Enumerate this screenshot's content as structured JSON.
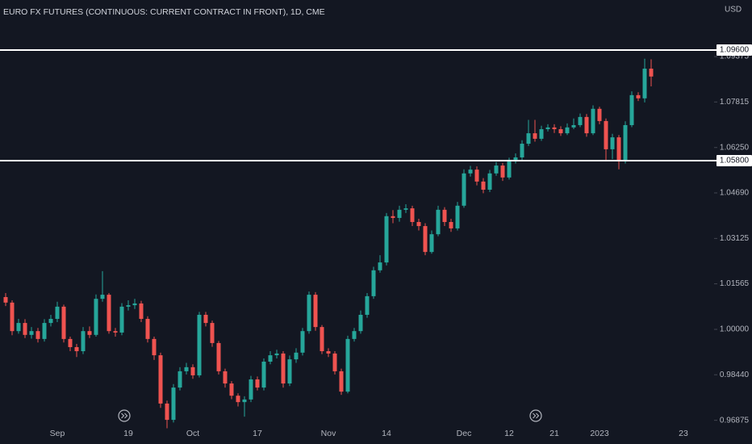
{
  "chart_data": {
    "type": "candlestick",
    "title": "EURO FX FUTURES (CONTINUOUS: CURRENT CONTRACT IN FRONT), 1D, CME",
    "currency": "USD",
    "up_color": "#26a69a",
    "down_color": "#ef5350",
    "ylim": [
      0.9606,
      1.1132
    ],
    "yticks": [
      0.96875,
      {
        "value": 0.9844,
        "label": "0.98440"
      },
      {
        "value": 1,
        "label": "1.00000"
      },
      1.01565,
      1.03125,
      {
        "value": 1.0469,
        "label": "1.04690"
      },
      {
        "value": 1.0625,
        "label": "1.06250"
      },
      1.07815,
      1.09375
    ],
    "levels": [
      {
        "value": 1.096,
        "label": "1.09600"
      },
      {
        "value": 1.058,
        "label": "1.05800"
      }
    ],
    "categories": [
      null,
      null,
      null,
      null,
      null,
      null,
      null,
      null,
      "Sep",
      null,
      null,
      null,
      null,
      null,
      null,
      null,
      null,
      null,
      null,
      "19",
      null,
      null,
      null,
      null,
      null,
      null,
      null,
      null,
      null,
      "Oct",
      null,
      null,
      null,
      null,
      null,
      null,
      null,
      null,
      null,
      "17",
      null,
      null,
      null,
      null,
      null,
      null,
      null,
      null,
      null,
      null,
      "Nov",
      null,
      null,
      null,
      null,
      null,
      null,
      null,
      null,
      "14",
      null,
      null,
      null,
      null,
      null,
      null,
      null,
      null,
      null,
      null,
      null,
      "Dec",
      null,
      null,
      null,
      null,
      null,
      null,
      "12",
      null,
      null,
      null,
      null,
      null,
      null,
      "21",
      null,
      null,
      null,
      null,
      null,
      null,
      "2023",
      null,
      null,
      null,
      null,
      null,
      null,
      null,
      null,
      null,
      null,
      null,
      null,
      "23"
    ],
    "open": [
      1.0111,
      1.0092,
      0.9994,
      1.0022,
      0.9981,
      0.9994,
      0.9967,
      1.0022,
      1.0036,
      1.0078,
      0.9967,
      0.9939,
      0.9925,
      0.9994,
      0.9981,
      1.0105,
      1.0119,
      0.9994,
      0.9989,
      1.0078,
      1.0083,
      1.0089,
      1.0036,
      0.9967,
      0.9911,
      0.9745,
      0.9689,
      0.98,
      0.9856,
      0.987,
      0.9842,
      1.005,
      1.0022,
      0.9953,
      0.9856,
      0.9814,
      0.9772,
      0.975,
      0.9759,
      0.9828,
      0.98,
      0.9889,
      0.9911,
      0.9917,
      0.9814,
      0.9897,
      0.992,
      0.9994,
      1.0119,
      1.0008,
      0.9925,
      0.9917,
      0.9856,
      0.9786,
      0.9967,
      0.9994,
      1.005,
      1.0114,
      1.0203,
      1.023,
      1.0389,
      1.0383,
      1.0411,
      1.0416,
      1.0369,
      1.0355,
      1.0266,
      1.0327,
      1.0411,
      1.0369,
      1.0347,
      1.0425,
      1.0536,
      1.0549,
      1.0508,
      1.048,
      1.0536,
      1.0563,
      1.0522,
      1.0577,
      1.0591,
      1.0638,
      1.0674,
      1.0655,
      1.0688,
      1.0694,
      1.0688,
      1.0674,
      1.0694,
      1.0702,
      1.073,
      1.0674,
      1.0758,
      1.0716,
      1.0619,
      1.066,
      1.0577,
      1.0702,
      1.0805,
      1.0794,
      1.0896,
      null,
      null,
      null,
      null,
      null
    ],
    "high": [
      1.0125,
      1.01,
      1.0036,
      1.0035,
      1.0008,
      1.0005,
      1.0035,
      1.005,
      1.0095,
      1.0085,
      0.9975,
      0.995,
      1.0008,
      1.001,
      1.012,
      1.02,
      1.0125,
      1.0005,
      1.009,
      1.01,
      1.0105,
      1.0098,
      1.0045,
      0.9975,
      0.992,
      0.9755,
      0.9812,
      0.987,
      0.9885,
      0.988,
      1.006,
      1.006,
      1.003,
      0.996,
      0.9865,
      0.9822,
      0.978,
      0.977,
      0.984,
      0.9838,
      0.99,
      0.9925,
      0.993,
      0.9925,
      0.991,
      0.9935,
      1.0005,
      1.013,
      1.0128,
      1.0015,
      0.9935,
      0.9925,
      0.9865,
      0.9978,
      1.0005,
      1.0065,
      1.0125,
      1.0215,
      1.0255,
      1.04,
      1.041,
      1.0425,
      1.043,
      1.0425,
      1.038,
      1.0365,
      1.034,
      1.0425,
      1.042,
      1.038,
      1.0438,
      1.055,
      1.0562,
      1.056,
      1.052,
      1.0548,
      1.0575,
      1.0572,
      1.059,
      1.0605,
      1.065,
      1.072,
      1.072,
      1.07,
      1.0705,
      1.0705,
      1.0698,
      1.0708,
      1.0725,
      1.0742,
      1.074,
      1.077,
      1.0765,
      1.0725,
      1.0672,
      1.0668,
      1.0715,
      1.0818,
      1.0815,
      1.093,
      1.0928,
      null,
      null,
      null,
      null,
      null
    ],
    "low": [
      1.008,
      0.998,
      0.9985,
      0.997,
      0.9968,
      0.9955,
      0.9958,
      1.001,
      1.0025,
      0.9955,
      0.9925,
      0.9905,
      0.9915,
      0.997,
      0.9975,
      1.0095,
      0.9985,
      0.9975,
      0.998,
      1.0065,
      1.007,
      1.0025,
      0.9955,
      0.9895,
      0.973,
      0.966,
      0.968,
      0.979,
      0.9845,
      0.983,
      0.9835,
      1.001,
      0.994,
      0.9845,
      0.98,
      0.976,
      0.9735,
      0.97,
      0.975,
      0.979,
      0.979,
      0.988,
      0.99,
      0.98,
      0.9805,
      0.9885,
      0.991,
      0.9985,
      0.9995,
      0.9915,
      0.9905,
      0.9845,
      0.9775,
      0.978,
      0.9958,
      0.9985,
      1.004,
      1.0105,
      1.0195,
      1.022,
      1.0365,
      1.037,
      1.04,
      1.0355,
      1.034,
      1.0255,
      1.026,
      1.032,
      1.0355,
      1.0335,
      1.034,
      1.0418,
      1.0525,
      1.0495,
      1.0468,
      1.0472,
      1.0528,
      1.051,
      1.0515,
      1.057,
      1.0582,
      1.063,
      1.0645,
      1.0648,
      1.068,
      1.0675,
      1.0665,
      1.0668,
      1.0688,
      1.0695,
      1.0662,
      1.0668,
      1.0705,
      1.058,
      1.0585,
      1.055,
      1.057,
      1.0695,
      1.0785,
      1.078,
      1.0835,
      null,
      null,
      null,
      null,
      null
    ],
    "close": [
      1.0092,
      0.9994,
      1.0022,
      0.9981,
      0.9994,
      0.9967,
      1.0022,
      1.0036,
      1.0078,
      0.9967,
      0.9939,
      0.9925,
      0.9994,
      0.9981,
      1.0105,
      1.0119,
      0.9994,
      0.9989,
      1.0078,
      1.0083,
      1.0089,
      1.0036,
      0.9967,
      0.9911,
      0.9745,
      0.9689,
      0.98,
      0.9856,
      0.987,
      0.9842,
      1.005,
      1.0022,
      0.9953,
      0.9856,
      0.9814,
      0.9772,
      0.975,
      0.9759,
      0.9828,
      0.98,
      0.9889,
      0.9911,
      0.9917,
      0.9814,
      0.9897,
      0.992,
      0.9994,
      1.0119,
      1.0008,
      0.9925,
      0.9917,
      0.9856,
      0.9786,
      0.9967,
      0.9994,
      1.005,
      1.0114,
      1.0203,
      1.023,
      1.0389,
      1.0383,
      1.0411,
      1.0416,
      1.0369,
      1.0355,
      1.0266,
      1.0327,
      1.0411,
      1.0369,
      1.0347,
      1.0425,
      1.0536,
      1.0549,
      1.0508,
      1.048,
      1.0536,
      1.0563,
      1.0522,
      1.0577,
      1.0591,
      1.0638,
      1.0674,
      1.0655,
      1.0688,
      1.0694,
      1.0688,
      1.0674,
      1.0694,
      1.0702,
      1.073,
      1.0674,
      1.0758,
      1.0716,
      1.0619,
      1.066,
      1.0577,
      1.0702,
      1.0805,
      1.0794,
      1.0896,
      1.0869,
      null,
      null,
      null,
      null,
      null
    ]
  }
}
